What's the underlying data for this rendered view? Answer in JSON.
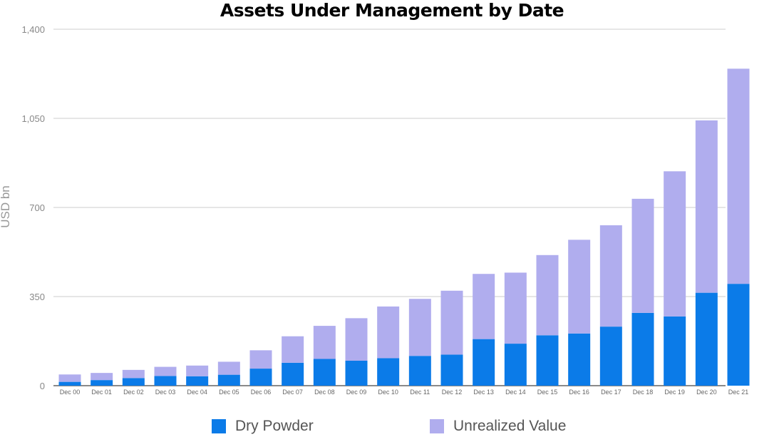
{
  "chart_data": {
    "type": "bar",
    "stacked": true,
    "title": "Assets Under Management by Date",
    "xlabel": "",
    "ylabel": "USD bn",
    "ylim": [
      0,
      1400
    ],
    "yticks": [
      0,
      350,
      700,
      1050,
      1400
    ],
    "ytick_labels": [
      "0",
      "350",
      "700",
      "1,050",
      "1,400"
    ],
    "grid": true,
    "legend_position": "bottom",
    "categories": [
      "Dec 00",
      "Dec 01",
      "Dec 02",
      "Dec 03",
      "Dec 04",
      "Dec 05",
      "Dec 06",
      "Dec 07",
      "Dec 08",
      "Dec 09",
      "Dec 10",
      "Dec 11",
      "Dec 12",
      "Dec 13",
      "Dec 14",
      "Dec 15",
      "Dec 16",
      "Dec 17",
      "Dec 18",
      "Dec 19",
      "Dec 20",
      "Dec 21"
    ],
    "series": [
      {
        "name": "Dry Powder",
        "color": "#0b7be8",
        "values": [
          15,
          22,
          30,
          38,
          37,
          43,
          67,
          90,
          105,
          98,
          108,
          117,
          122,
          183,
          165,
          198,
          205,
          232,
          286,
          272,
          365,
          400
        ]
      },
      {
        "name": "Unrealized Value",
        "color": "#b0adee",
        "values": [
          29,
          28,
          32,
          36,
          42,
          51,
          72,
          104,
          130,
          167,
          203,
          224,
          251,
          256,
          279,
          315,
          368,
          398,
          448,
          570,
          677,
          845
        ]
      }
    ]
  }
}
